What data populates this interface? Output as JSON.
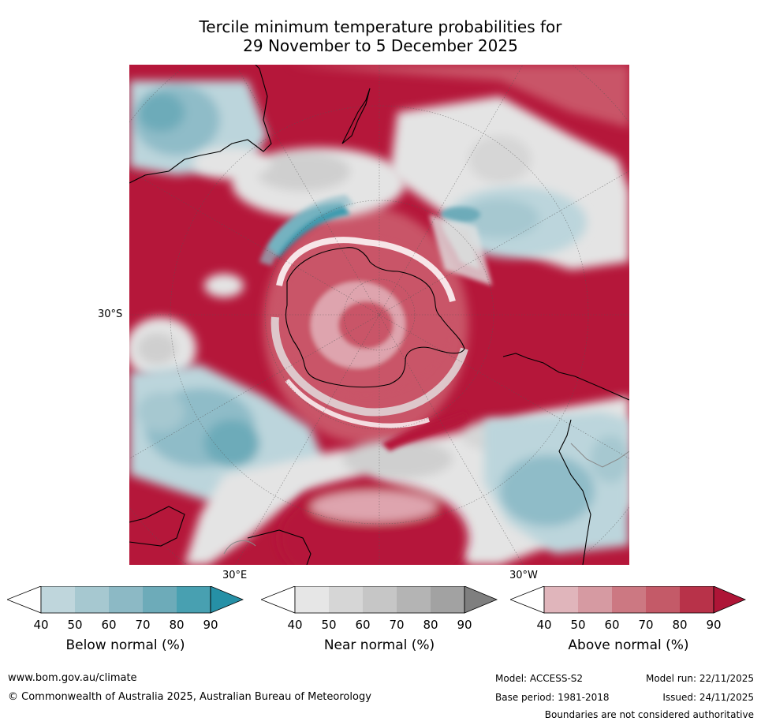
{
  "title": {
    "line1": "Tercile minimum temperature probabilities for",
    "line2": "29 November to 5 December 2025"
  },
  "map": {
    "lat_label_left": "30°S",
    "lon_label_bottom_left": "30°E",
    "lon_label_bottom_right": "30°W",
    "colors": {
      "above_strong": "#b5173a",
      "above_mid": "#c95468",
      "above_light": "#dea4ae",
      "near_light": "#e4e4e4",
      "near_mid": "#cfcfcf",
      "below_light": "#bcd5dc",
      "below_mid": "#8fbcc8",
      "below_strong": "#3a9aae",
      "land_line": "#000000"
    }
  },
  "colorbars": [
    {
      "id": "below",
      "title": "Below normal (%)",
      "ticks": [
        "40",
        "50",
        "60",
        "70",
        "80",
        "90"
      ],
      "colors": [
        "#bfd6dc",
        "#a6c8d0",
        "#8cb9c5",
        "#6dabb9",
        "#48a0b1",
        "#2690a6"
      ]
    },
    {
      "id": "near",
      "title": "Near normal (%)",
      "ticks": [
        "40",
        "50",
        "60",
        "70",
        "80",
        "90"
      ],
      "colors": [
        "#e6e6e6",
        "#d6d6d6",
        "#c6c6c6",
        "#b4b4b4",
        "#a2a2a2",
        "#7f7f7f"
      ]
    },
    {
      "id": "above",
      "title": "Above normal (%)",
      "ticks": [
        "40",
        "50",
        "60",
        "70",
        "80",
        "90"
      ],
      "colors": [
        "#e0b5bb",
        "#d69aa2",
        "#cc7882",
        "#c45a68",
        "#b83249",
        "#ae1537"
      ]
    }
  ],
  "footer": {
    "website": "www.bom.gov.au/climate",
    "copyright": "© Commonwealth of Australia 2025, Australian Bureau of Meteorology",
    "model": "Model: ACCESS-S2",
    "model_run": "Model run: 22/11/2025",
    "base_period": "Base period: 1981-2018",
    "issued": "Issued: 24/11/2025",
    "disclaimer": "Boundaries are not considered authoritative"
  }
}
